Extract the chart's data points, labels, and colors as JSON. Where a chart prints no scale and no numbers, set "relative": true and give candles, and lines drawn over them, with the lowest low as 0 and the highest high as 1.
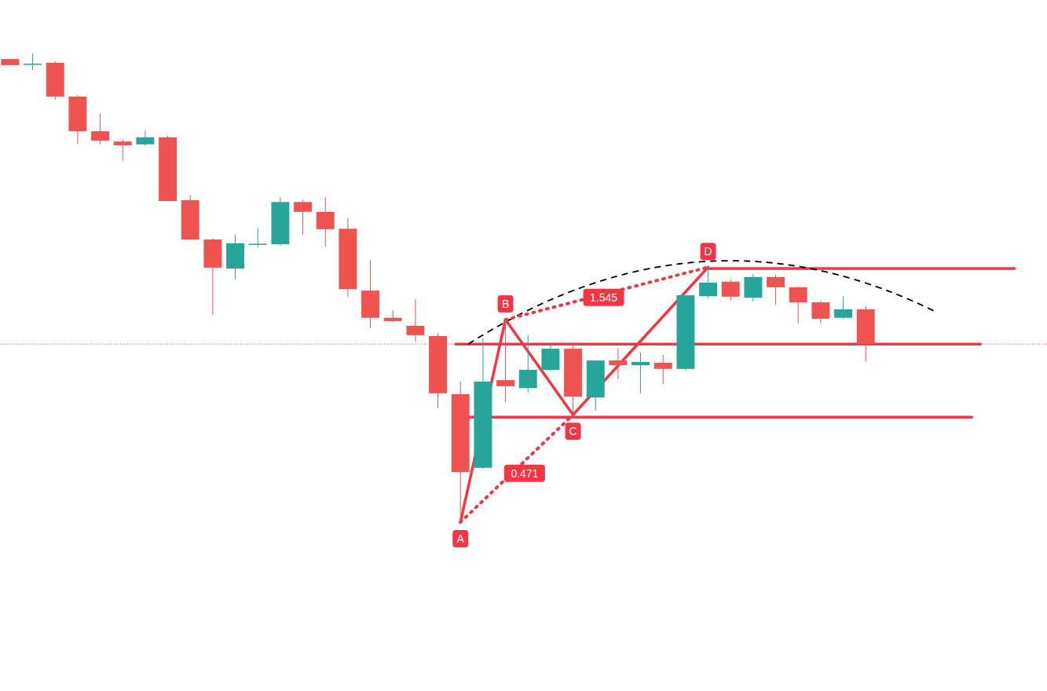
{
  "chart_data": {
    "type": "candlestick",
    "relative": true,
    "categories": [
      null,
      null,
      null,
      null,
      null,
      null,
      null,
      null,
      null,
      null,
      null,
      null,
      null,
      null,
      null,
      null,
      null,
      null,
      null,
      null,
      null,
      null,
      null,
      null,
      null,
      null,
      null,
      null,
      null,
      null,
      null,
      null,
      null,
      null,
      null,
      null,
      null,
      null,
      null
    ],
    "ohlc": [
      [
        0.988,
        0.988,
        0.975,
        0.975
      ],
      [
        0.977,
        1.0,
        0.965,
        0.978
      ],
      [
        0.98,
        0.983,
        0.901,
        0.908
      ],
      [
        0.908,
        0.911,
        0.807,
        0.834
      ],
      [
        0.834,
        0.871,
        0.806,
        0.814
      ],
      [
        0.812,
        0.817,
        0.771,
        0.804
      ],
      [
        0.806,
        0.836,
        0.802,
        0.821
      ],
      [
        0.821,
        0.824,
        0.685,
        0.685
      ],
      [
        0.687,
        0.698,
        0.603,
        0.603
      ],
      [
        0.603,
        0.606,
        0.442,
        0.543
      ],
      [
        0.541,
        0.613,
        0.518,
        0.595
      ],
      [
        0.592,
        0.628,
        0.585,
        0.594
      ],
      [
        0.593,
        0.693,
        0.59,
        0.683
      ],
      [
        0.683,
        0.688,
        0.613,
        0.662
      ],
      [
        0.662,
        0.693,
        0.588,
        0.625
      ],
      [
        0.626,
        0.648,
        0.481,
        0.497
      ],
      [
        0.494,
        0.559,
        0.414,
        0.436
      ],
      [
        0.436,
        0.452,
        0.427,
        0.429
      ],
      [
        0.419,
        0.476,
        0.385,
        0.399
      ],
      [
        0.397,
        0.404,
        0.243,
        0.275
      ],
      [
        0.273,
        0.3,
        0.0,
        0.107
      ],
      [
        0.116,
        0.392,
        0.114,
        0.3
      ],
      [
        0.303,
        0.432,
        0.256,
        0.29
      ],
      [
        0.286,
        0.399,
        0.276,
        0.325
      ],
      [
        0.325,
        0.377,
        0.323,
        0.37
      ],
      [
        0.37,
        0.377,
        0.229,
        0.268
      ],
      [
        0.266,
        0.345,
        0.238,
        0.345
      ],
      [
        0.345,
        0.37,
        0.305,
        0.335
      ],
      [
        0.335,
        0.362,
        0.275,
        0.342
      ],
      [
        0.34,
        0.357,
        0.295,
        0.327
      ],
      [
        0.327,
        0.484,
        0.323,
        0.484
      ],
      [
        0.482,
        0.544,
        0.477,
        0.511
      ],
      [
        0.513,
        0.518,
        0.472,
        0.481
      ],
      [
        0.479,
        0.529,
        0.471,
        0.523
      ],
      [
        0.523,
        0.528,
        0.464,
        0.501
      ],
      [
        0.501,
        0.503,
        0.424,
        0.469
      ],
      [
        0.469,
        0.472,
        0.424,
        0.434
      ],
      [
        0.436,
        0.482,
        0.434,
        0.454
      ],
      [
        0.454,
        0.461,
        0.343,
        0.38
      ]
    ],
    "colors": [
      "#ef5350",
      "#26a69a",
      "#ef5350",
      "#ef5350",
      "#ef5350",
      "#ef5350",
      "#26a69a",
      "#ef5350",
      "#ef5350",
      "#ef5350",
      "#26a69a",
      "#26a69a",
      "#26a69a",
      "#ef5350",
      "#ef5350",
      "#ef5350",
      "#ef5350",
      "#ef5350",
      "#ef5350",
      "#ef5350",
      "#ef5350",
      "#26a69a",
      "#ef5350",
      "#26a69a",
      "#26a69a",
      "#ef5350",
      "#26a69a",
      "#ef5350",
      "#26a69a",
      "#ef5350",
      "#26a69a",
      "#26a69a",
      "#ef5350",
      "#26a69a",
      "#ef5350",
      "#ef5350",
      "#ef5350",
      "#26a69a",
      "#ef5350"
    ],
    "ref_lines": [
      {
        "axis": "y",
        "value": 0.38,
        "color": "#f23645",
        "line_style": "dotted"
      },
      {
        "axis": "y",
        "value": 0.38,
        "color": "#f23645",
        "line_style": "solid"
      },
      {
        "axis": "y",
        "value": 0.224,
        "color": "#f23645",
        "line_style": "solid"
      },
      {
        "axis": "y",
        "value": 0.541,
        "color": "#f23645",
        "line_style": "solid"
      }
    ],
    "annotations": [
      "A",
      "B",
      "C",
      "D",
      "0.471",
      "1.545"
    ]
  }
}
